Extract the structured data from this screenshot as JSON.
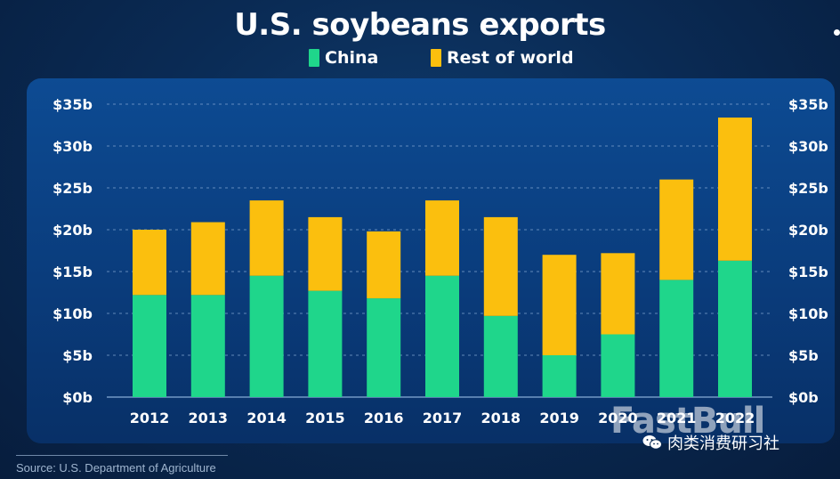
{
  "chart_data": {
    "type": "bar",
    "stacked": true,
    "title": "U.S. soybeans exports",
    "categories": [
      "2012",
      "2013",
      "2014",
      "2015",
      "2016",
      "2017",
      "2018",
      "2019",
      "2020",
      "2021",
      "2022"
    ],
    "series": [
      {
        "name": "China",
        "color": "#1fd68b",
        "values": [
          12.2,
          12.2,
          14.5,
          12.7,
          11.8,
          14.5,
          9.7,
          5.0,
          7.5,
          14.0,
          16.3
        ]
      },
      {
        "name": "Rest of world",
        "color": "#fbbf0e",
        "values": [
          7.8,
          8.7,
          9.0,
          8.8,
          8.0,
          9.0,
          11.8,
          12.0,
          9.7,
          12.0,
          17.1
        ]
      }
    ],
    "ylim": [
      0,
      35
    ],
    "yticks": [
      0,
      5,
      10,
      15,
      20,
      25,
      30,
      35
    ],
    "ytick_labels": [
      "$0b",
      "$5b",
      "$10b",
      "$15b",
      "$20b",
      "$25b",
      "$30b",
      "$35b"
    ],
    "grid": true,
    "legend_position": "top-center"
  },
  "legend": {
    "china": "China",
    "row": "Rest of world"
  },
  "source": "Source: U.S. Department of Agriculture",
  "watermark": "FastBull",
  "wechat_account": "肉类消费研习社",
  "colors": {
    "background": "#0a2b55",
    "panel": "#0b448a",
    "grid": "#7fa3cf"
  }
}
